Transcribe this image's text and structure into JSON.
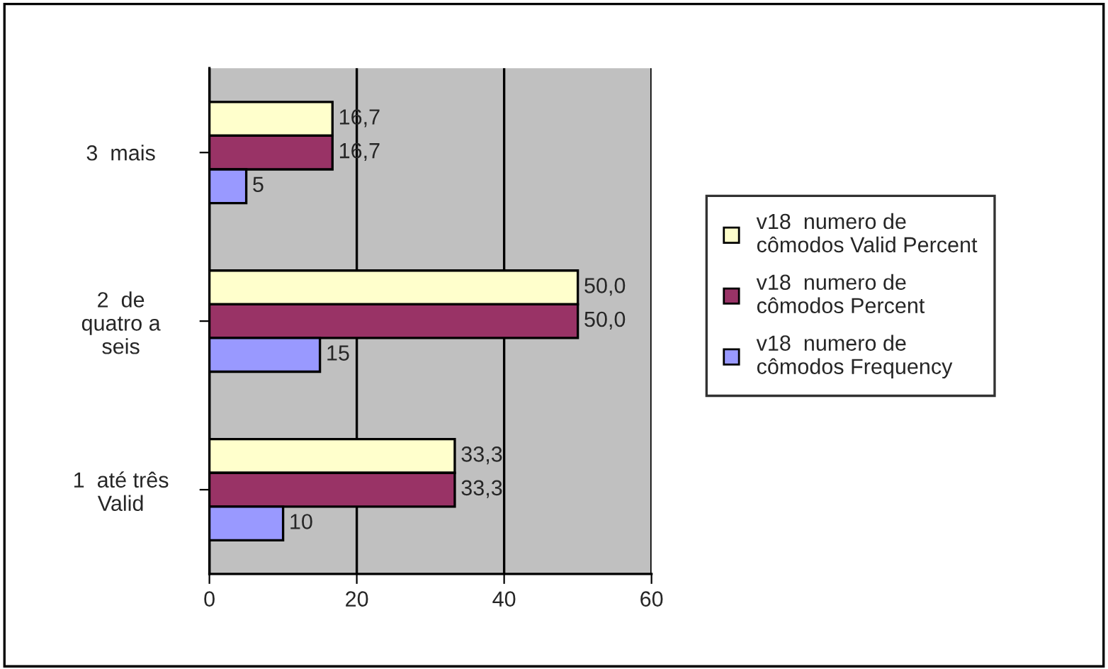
{
  "chart_data": {
    "type": "bar",
    "orientation": "horizontal",
    "categories": [
      "3  mais",
      "2  de quatro a seis",
      "1  até três Valid"
    ],
    "series": [
      {
        "name": "v18  numero de cômodos Valid Percent",
        "color": "#ffffcc",
        "values": [
          16.7,
          50.0,
          33.3
        ],
        "value_labels": [
          "16,7",
          "50,0",
          "33,3"
        ]
      },
      {
        "name": "v18  numero de cômodos Percent",
        "color": "#993366",
        "values": [
          16.7,
          50.0,
          33.3
        ],
        "value_labels": [
          "16,7",
          "50,0",
          "33,3"
        ]
      },
      {
        "name": "v18  numero de cômodos Frequency",
        "color": "#9999ff",
        "values": [
          5,
          15,
          10
        ],
        "value_labels": [
          "5",
          "15",
          "10"
        ]
      }
    ],
    "xlim": [
      0,
      60
    ],
    "xticks": [
      0,
      20,
      40,
      60
    ],
    "grid": "x",
    "legend": "right"
  }
}
